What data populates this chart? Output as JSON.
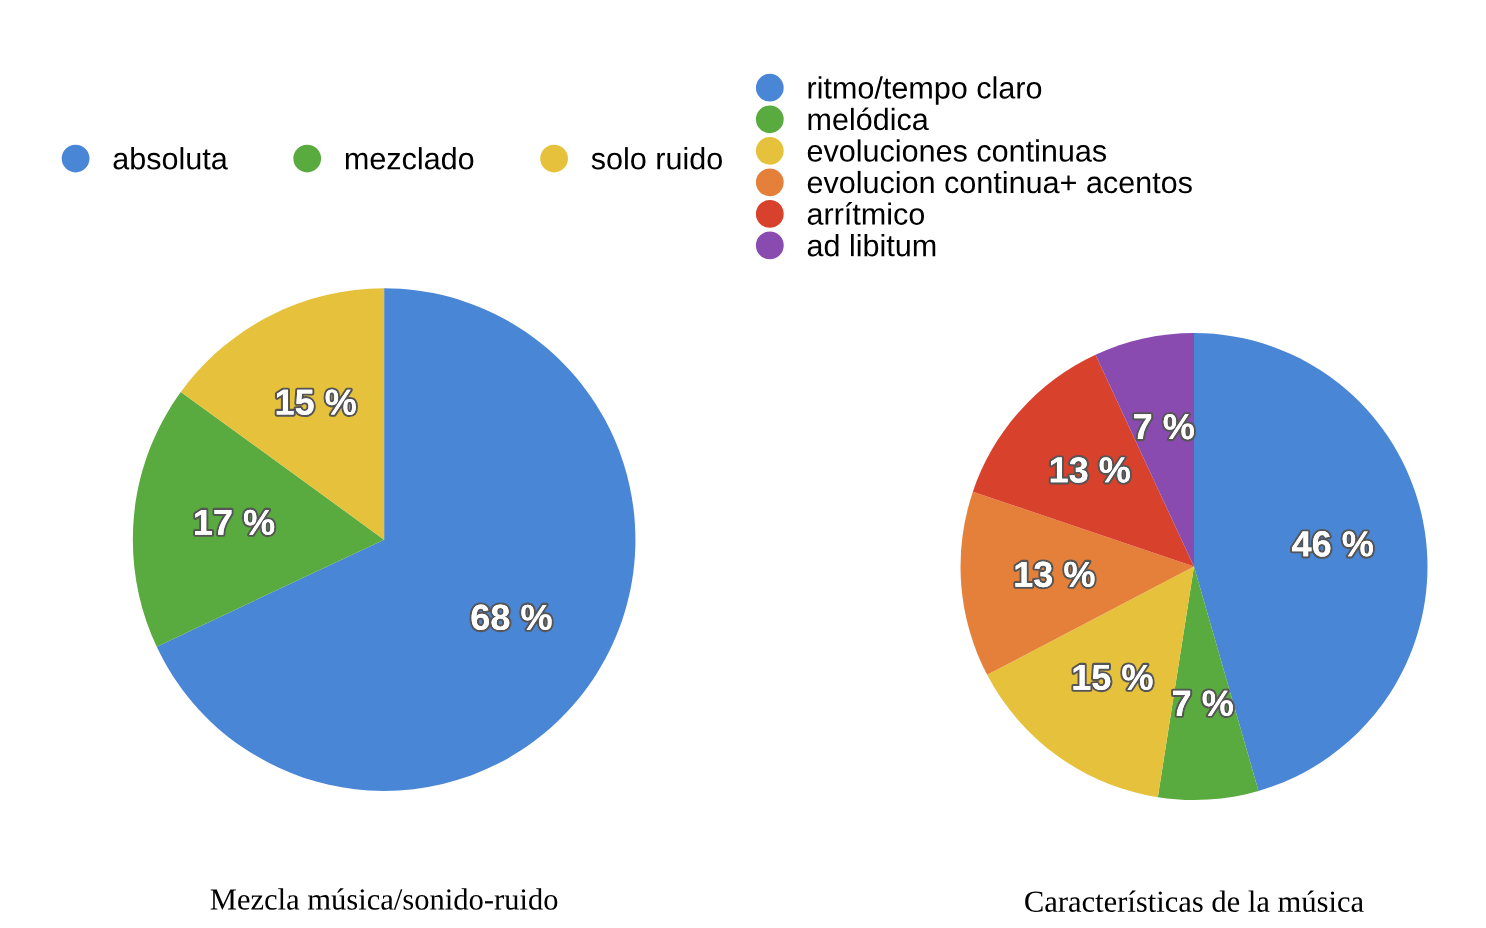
{
  "chart_data": [
    {
      "type": "pie",
      "title": "Mezcla música/sonido-ruido",
      "categories": [
        "absoluta",
        "mezclado",
        "solo ruido"
      ],
      "values": [
        68,
        17,
        15
      ],
      "colors": [
        "#4a86d6",
        "#5aab3f",
        "#e6c23c"
      ],
      "value_labels": [
        "68 %",
        "17 %",
        "15 %"
      ],
      "legend": "top"
    },
    {
      "type": "pie",
      "title": "Características de la música",
      "categories": [
        "ritmo/tempo claro",
        "melódica",
        "evoluciones continuas",
        "evolucion continua+ acentos",
        "arrítmico",
        "ad libitum"
      ],
      "values": [
        46,
        7,
        15,
        13,
        13,
        7
      ],
      "colors": [
        "#4a86d6",
        "#5aab3f",
        "#e6c23c",
        "#e5803a",
        "#d8412b",
        "#8a4bb0"
      ],
      "value_labels": [
        "46 %",
        "7 %",
        "15 %",
        "13 %",
        "13 %",
        "7 %"
      ],
      "legend": "top left"
    }
  ]
}
